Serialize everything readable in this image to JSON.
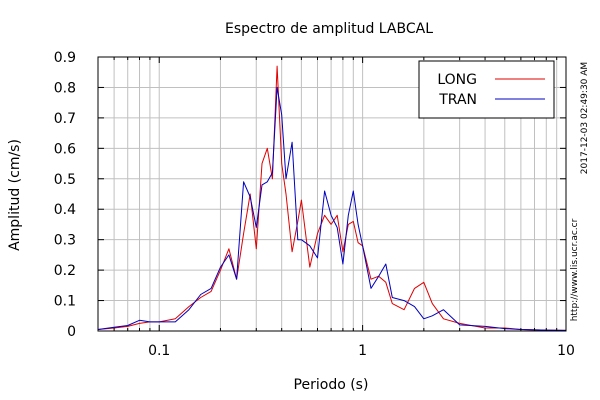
{
  "chart_data": {
    "type": "line",
    "title": "Espectro de amplitud LABCAL",
    "xlabel": "Periodo (s)",
    "ylabel": "Amplitud (cm/s)",
    "x_scale": "log",
    "xlim": [
      0.05,
      10
    ],
    "ylim": [
      0,
      0.9
    ],
    "grid": true,
    "legend_position": "top-right",
    "x_ticks": [
      {
        "value": 0.1,
        "label": "0.1"
      },
      {
        "value": 1,
        "label": "1"
      },
      {
        "value": 10,
        "label": "10"
      }
    ],
    "y_ticks": [
      {
        "value": 0,
        "label": "0"
      },
      {
        "value": 0.1,
        "label": "0.1"
      },
      {
        "value": 0.2,
        "label": "0.2"
      },
      {
        "value": 0.3,
        "label": "0.3"
      },
      {
        "value": 0.4,
        "label": "0.4"
      },
      {
        "value": 0.5,
        "label": "0.5"
      },
      {
        "value": 0.6,
        "label": "0.6"
      },
      {
        "value": 0.7,
        "label": "0.7"
      },
      {
        "value": 0.8,
        "label": "0.8"
      },
      {
        "value": 0.9,
        "label": "0.9"
      }
    ],
    "series": [
      {
        "name": "LONG",
        "color": "#e00000",
        "x": [
          0.05,
          0.06,
          0.07,
          0.08,
          0.09,
          0.1,
          0.12,
          0.14,
          0.16,
          0.18,
          0.2,
          0.22,
          0.24,
          0.26,
          0.28,
          0.3,
          0.32,
          0.34,
          0.36,
          0.38,
          0.4,
          0.42,
          0.45,
          0.48,
          0.5,
          0.55,
          0.6,
          0.65,
          0.7,
          0.75,
          0.8,
          0.85,
          0.9,
          0.95,
          1.0,
          1.1,
          1.2,
          1.3,
          1.4,
          1.6,
          1.8,
          2.0,
          2.2,
          2.5,
          3,
          4,
          5,
          6,
          8,
          10
        ],
        "y": [
          0.005,
          0.01,
          0.015,
          0.025,
          0.03,
          0.03,
          0.04,
          0.08,
          0.11,
          0.13,
          0.2,
          0.27,
          0.17,
          0.32,
          0.45,
          0.27,
          0.55,
          0.6,
          0.5,
          0.87,
          0.55,
          0.45,
          0.26,
          0.36,
          0.43,
          0.21,
          0.32,
          0.38,
          0.35,
          0.38,
          0.26,
          0.35,
          0.36,
          0.29,
          0.28,
          0.17,
          0.18,
          0.16,
          0.09,
          0.07,
          0.14,
          0.16,
          0.09,
          0.04,
          0.025,
          0.01,
          0.01,
          0.005,
          0.003,
          0.002
        ]
      },
      {
        "name": "TRAN",
        "color": "#0000c0",
        "x": [
          0.05,
          0.06,
          0.07,
          0.08,
          0.09,
          0.1,
          0.12,
          0.14,
          0.16,
          0.18,
          0.2,
          0.22,
          0.24,
          0.26,
          0.28,
          0.3,
          0.32,
          0.34,
          0.36,
          0.38,
          0.4,
          0.42,
          0.45,
          0.48,
          0.5,
          0.55,
          0.6,
          0.65,
          0.7,
          0.75,
          0.8,
          0.85,
          0.9,
          0.95,
          1.0,
          1.1,
          1.2,
          1.3,
          1.4,
          1.6,
          1.8,
          2.0,
          2.2,
          2.5,
          3,
          4,
          5,
          6,
          8,
          10
        ],
        "y": [
          0.005,
          0.012,
          0.018,
          0.035,
          0.03,
          0.03,
          0.03,
          0.07,
          0.12,
          0.14,
          0.21,
          0.25,
          0.17,
          0.49,
          0.44,
          0.34,
          0.48,
          0.49,
          0.52,
          0.8,
          0.71,
          0.5,
          0.62,
          0.3,
          0.3,
          0.28,
          0.24,
          0.46,
          0.38,
          0.34,
          0.22,
          0.38,
          0.46,
          0.35,
          0.28,
          0.14,
          0.18,
          0.22,
          0.11,
          0.1,
          0.08,
          0.04,
          0.05,
          0.07,
          0.02,
          0.015,
          0.008,
          0.005,
          0.003,
          0.002
        ]
      }
    ]
  },
  "side_texts": {
    "timestamp": "2017-12-03 02:49:30 AM",
    "url": "http://www.lis.ucr.ac.cr"
  }
}
